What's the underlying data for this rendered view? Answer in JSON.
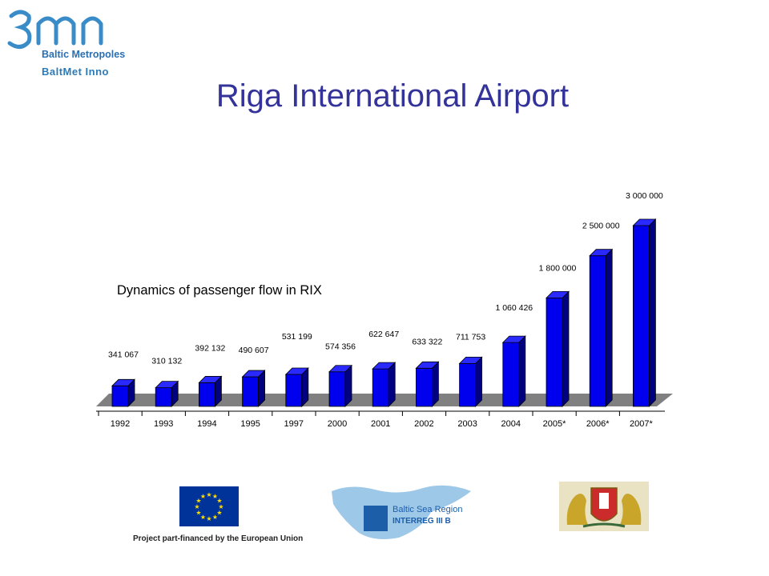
{
  "header": {
    "logo_text": "Baltic Metropoles",
    "logo_sub": "BaltMet Inno",
    "title": "Riga International Airport"
  },
  "footer": {
    "eu_caption": "Project part-financed by the European Union",
    "interreg_line1": "Baltic Sea Region",
    "interreg_line2": "INTERREG III B"
  },
  "colors": {
    "title": "#333399",
    "bar": "#0000ee",
    "bar_dark": "#000080",
    "floor": "#808080"
  },
  "chart_data": {
    "type": "bar",
    "title": "Dynamics of passenger flow in RIX",
    "categories": [
      "1992",
      "1993",
      "1994",
      "1995",
      "1997",
      "2000",
      "2001",
      "2002",
      "2003",
      "2004",
      "2005*",
      "2006*",
      "2007*"
    ],
    "values": [
      341067,
      310132,
      392132,
      490607,
      531199,
      574356,
      622647,
      633322,
      711753,
      1060426,
      1800000,
      2500000,
      3000000
    ],
    "value_labels": [
      "341 067",
      "310 132",
      "392 132",
      "490 607",
      "531 199",
      "574 356",
      "622 647",
      "633 322",
      "711 753",
      "1 060 426",
      "1 800 000",
      "2 500 000",
      "3 000 000"
    ],
    "ylim": [
      0,
      3000000
    ],
    "xlabel": "",
    "ylabel": "",
    "grid": false,
    "legend": "none"
  }
}
